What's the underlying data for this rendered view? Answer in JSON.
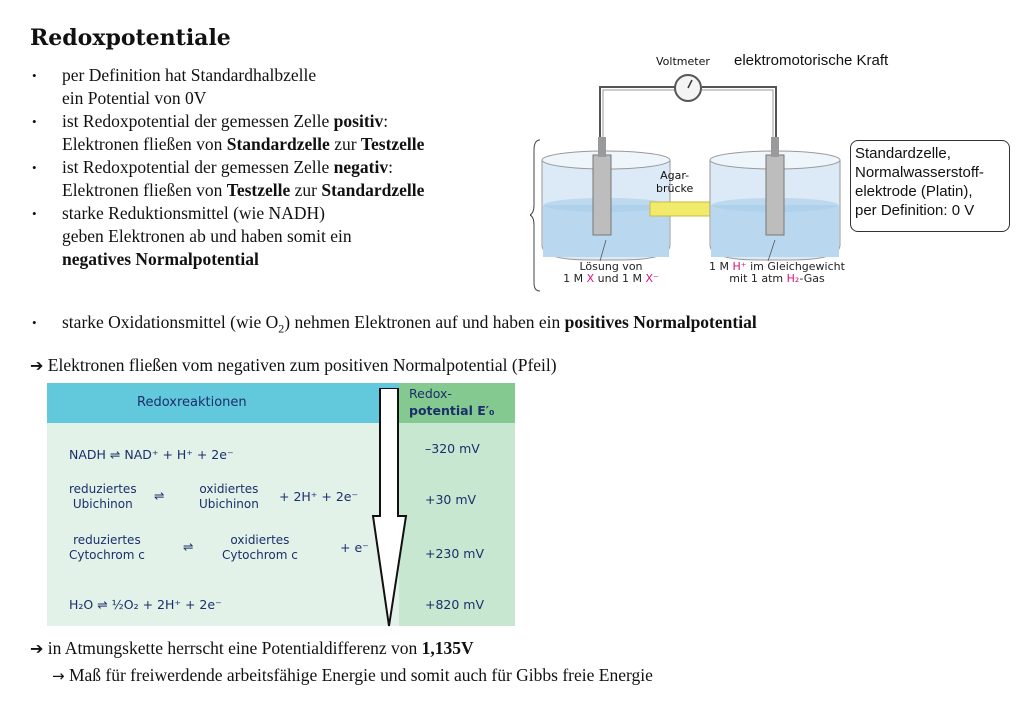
{
  "title": "Redoxpotentiale",
  "bullets": [
    {
      "l1": "per Definition hat Standardhalbzelle",
      "l2": "ein Potential von 0V"
    },
    {
      "l1a": "ist Redoxpotential der gemessen Zelle ",
      "l1b": "positiv",
      "l1c": ":",
      "l2a": "Elektronen fließen von ",
      "l2b": "Standardzelle",
      "l2c": " zur ",
      "l2d": "Testzelle"
    },
    {
      "l1a": "ist Redoxpotential der gemessen Zelle ",
      "l1b": "negativ",
      "l1c": ":",
      "l2a": "Elektronen fließen von ",
      "l2b": "Testzelle",
      "l2c": " zur ",
      "l2d": "Standardzelle"
    },
    {
      "l1": "starke Reduktionsmittel (wie NADH)",
      "l2": "geben Elektronen ab und haben somit ein",
      "l3": "negatives Normalpotential"
    }
  ],
  "bullet5": {
    "a": "starke Oxidationsmittel (wie O",
    "sub": "2",
    "b": ") nehmen Elektronen auf und haben ein ",
    "c": "positives Normalpotential"
  },
  "arrow1": "Elektronen fließen vom negativen zum positiven Normalpotential (Pfeil)",
  "figure": {
    "voltmeter": "Voltmeter",
    "emk": "elektromotorische Kraft",
    "agar_l1": "Agar-",
    "agar_l2": "brücke",
    "left_l1": "Lösung von",
    "left_l2a": "1 M ",
    "left_x": "X",
    "left_l2b": " und 1 M ",
    "left_xm": "X⁻",
    "right_l1a": "1 M ",
    "right_h": "H⁺",
    "right_l1b": " im Gleichgewicht",
    "right_l2a": "mit 1 atm ",
    "right_h2": "H₂",
    "right_l2b": "-Gas",
    "box": [
      "Standardzelle,",
      "Normalwasserstoff-",
      "elektrode (Platin),",
      "per Definition: 0 V"
    ]
  },
  "table": {
    "header_reactions": "Redoxreaktionen",
    "header_pot_l1": "Redox-",
    "header_pot_l2": "potential E′₀",
    "rows": [
      {
        "left": "NADH ⇌ NAD⁺ + H⁺ + 2e⁻",
        "value": "–320 mV"
      },
      {
        "a1": "reduziertes",
        "a2": "Ubichinon",
        "b1": "oxidiertes",
        "b2": "Ubichinon",
        "rest": "+ 2H⁺ + 2e⁻",
        "value": "+30 mV"
      },
      {
        "a1": "reduziertes",
        "a2": "Cytochrom c",
        "b1": "oxidiertes",
        "b2": "Cytochrom c",
        "rest": "+ e⁻",
        "value": "+230 mV"
      },
      {
        "left": "H₂O ⇌ ½O₂ + 2H⁺ + 2e⁻",
        "value": "+820 mV"
      }
    ]
  },
  "arrow2": {
    "a": "in Atmungskette herrscht eine Potentialdifferenz von ",
    "b": "1,135V"
  },
  "arrow3": "Maß für freiwerdende arbeitsfähige Energie und somit auch für Gibbs freie Energie",
  "arrow_glyph": "➔",
  "arrow_glyph2": "→",
  "eq_symbol": "⇌",
  "bullet_glyph": "•"
}
